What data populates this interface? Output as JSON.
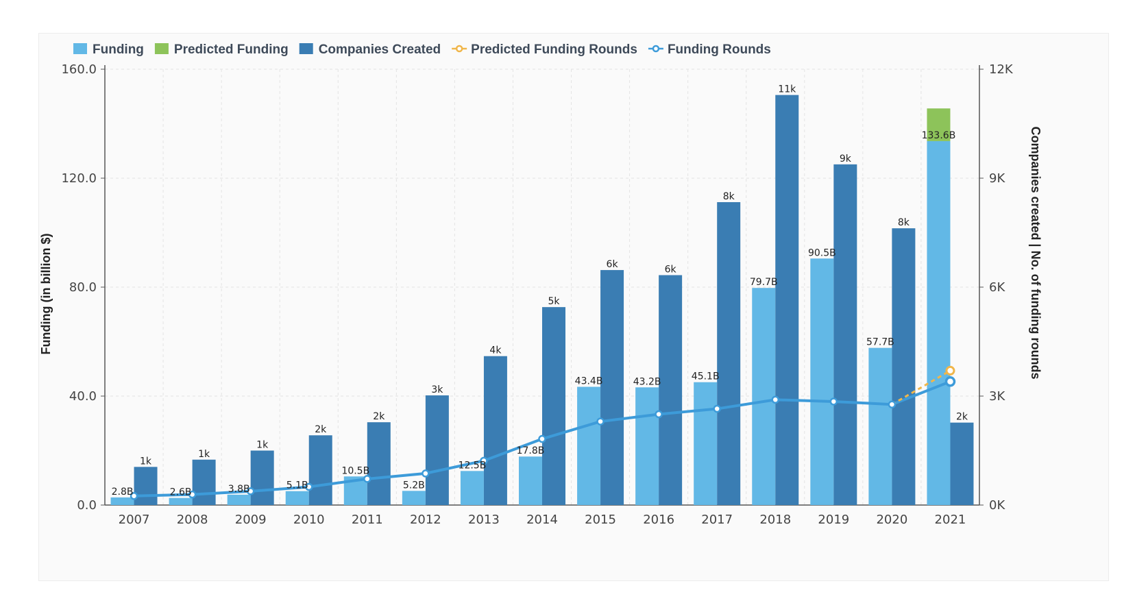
{
  "chart_data": {
    "type": "bar",
    "categories": [
      "2007",
      "2008",
      "2009",
      "2010",
      "2011",
      "2012",
      "2013",
      "2014",
      "2015",
      "2016",
      "2017",
      "2018",
      "2019",
      "2020",
      "2021"
    ],
    "legend": [
      {
        "name": "Funding",
        "kind": "bar",
        "color": "#62b8e6"
      },
      {
        "name": "Predicted Funding",
        "kind": "bar",
        "color": "#8dc35a"
      },
      {
        "name": "Companies Created",
        "kind": "bar",
        "color": "#3a7db3"
      },
      {
        "name": "Predicted Funding Rounds",
        "kind": "line",
        "color": "#f0b64a"
      },
      {
        "name": "Funding Rounds",
        "kind": "line",
        "color": "#3d9bd9"
      }
    ],
    "series": [
      {
        "name": "Funding",
        "axis": "left",
        "values": [
          2.8,
          2.6,
          3.8,
          5.1,
          10.5,
          5.2,
          12.5,
          17.8,
          43.4,
          43.2,
          45.1,
          79.7,
          90.5,
          57.7,
          133.6
        ],
        "labels": [
          "2.8B",
          "2.6B",
          "3.8B",
          "5.1B",
          "10.5B",
          "5.2B",
          "12.5B",
          "17.8B",
          "43.4B",
          "43.2B",
          "45.1B",
          "79.7B",
          "90.5B",
          "57.7B",
          "133.6B"
        ]
      },
      {
        "name": "Predicted Funding",
        "axis": "left",
        "stacked_on": "Funding",
        "values": [
          0,
          0,
          0,
          0,
          0,
          0,
          0,
          0,
          0,
          0,
          0,
          0,
          0,
          0,
          12
        ]
      },
      {
        "name": "Companies Created",
        "axis": "right",
        "values": [
          1050,
          1250,
          1500,
          1920,
          2280,
          3020,
          4100,
          5450,
          6470,
          6330,
          8340,
          11290,
          9380,
          7620,
          2270
        ],
        "labels": [
          "1k",
          "1k",
          "1k",
          "2k",
          "2k",
          "3k",
          "4k",
          "5k",
          "6k",
          "6k",
          "8k",
          "11k",
          "9k",
          "8k",
          "2k"
        ]
      },
      {
        "name": "Funding Rounds",
        "axis": "right",
        "values": [
          250,
          290,
          380,
          500,
          720,
          870,
          1220,
          1820,
          2300,
          2500,
          2650,
          2900,
          2850,
          2770,
          3400
        ]
      },
      {
        "name": "Predicted Funding Rounds",
        "axis": "right",
        "x": [
          "2020",
          "2021"
        ],
        "values": [
          2770,
          3700
        ]
      }
    ],
    "yaxis_left": {
      "title": "Funding (in billion $)",
      "min": 0,
      "max": 160,
      "ticks": [
        "0.0",
        "40.0",
        "80.0",
        "120.0",
        "160.0"
      ]
    },
    "yaxis_right": {
      "title": "Companies created | No. of funding rounds",
      "min": 0,
      "max": 12000,
      "ticks": [
        "0K",
        "3K",
        "6K",
        "9K",
        "12K"
      ]
    },
    "grid": true,
    "legend_position": "top-left"
  }
}
